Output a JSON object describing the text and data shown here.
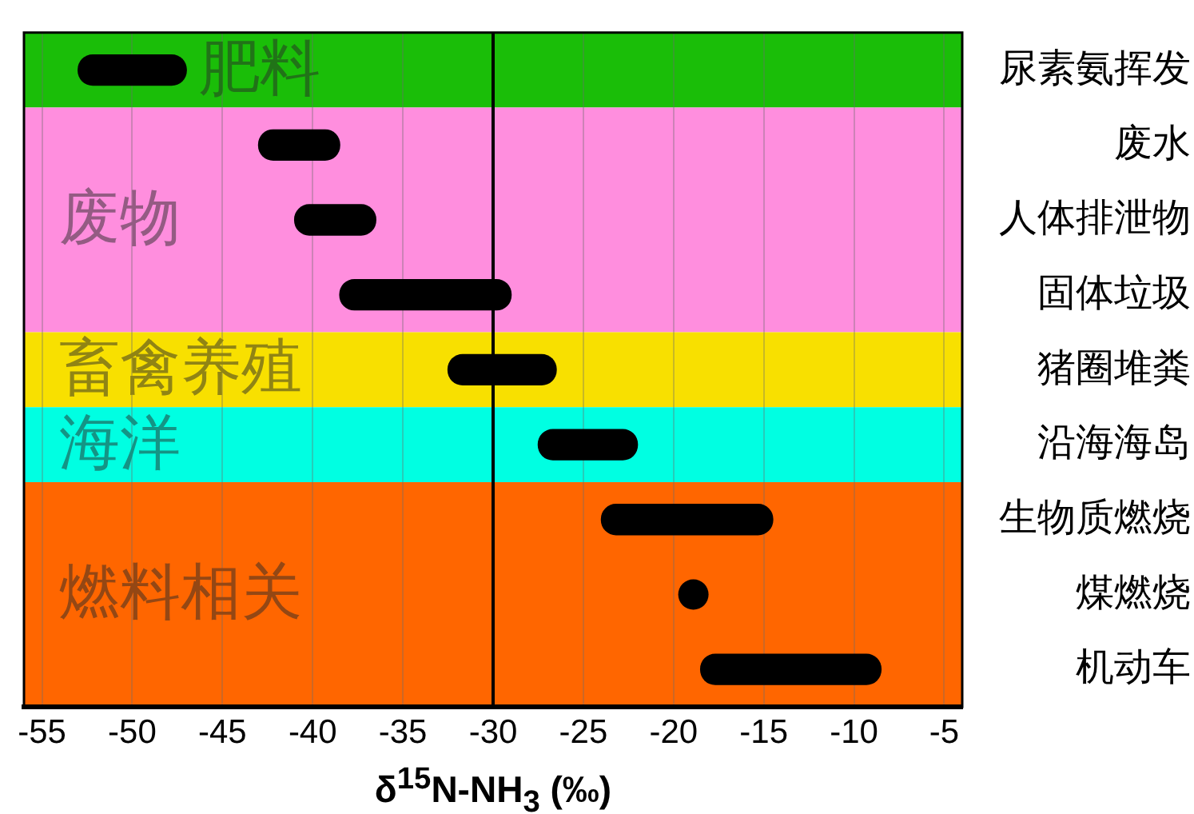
{
  "chart_data": {
    "type": "bar",
    "orientation": "horizontal",
    "categories": [
      "尿素氨挥发",
      "废水",
      "人体排泄物",
      "固体垃圾",
      "猪圈堆粪",
      "沿海海岛",
      "生物质燃烧",
      "煤燃烧",
      "机动车"
    ],
    "series": [
      {
        "type": "bar",
        "color": "#000000",
        "base": [
          -53,
          -43,
          -41,
          -38.5,
          -32.5,
          -27.5,
          -24,
          null,
          -18.5
        ],
        "values": [
          6,
          4.5,
          4.5,
          9.5,
          6,
          5.5,
          9.5,
          null,
          10
        ]
      },
      {
        "type": "scatter",
        "color": "#000000",
        "marker": "circle",
        "x": [
          "煤燃烧"
        ],
        "values": [
          -18.9
        ]
      }
    ],
    "xlim": [
      -56,
      -4
    ],
    "xticks": [
      -55,
      -50,
      -45,
      -40,
      -35,
      -30,
      -25,
      -20,
      -15,
      -10,
      -5
    ],
    "xlabel": "δ$^{15}$N-NH$_{3}$ (‰)",
    "grid": "x",
    "ref_lines": [
      {
        "axis": "x",
        "value": -30,
        "color": "#000000"
      }
    ],
    "bands": [
      {
        "axis": "y",
        "from": "尿素氨挥发",
        "to": "尿素氨挥发",
        "label": "肥料",
        "color": "#1abe08"
      },
      {
        "axis": "y",
        "from": "废水",
        "to": "固体垃圾",
        "label": "废物",
        "color": "#ff8ede"
      },
      {
        "axis": "y",
        "from": "猪圈堆粪",
        "to": "猪圈堆粪",
        "label": "畜禽养殖",
        "color": "#f8e000"
      },
      {
        "axis": "y",
        "from": "沿海海岛",
        "to": "沿海海岛",
        "label": "海洋",
        "color": "#00ffe2"
      },
      {
        "axis": "y",
        "from": "生物质燃烧",
        "to": "机动车",
        "label": "燃料相关",
        "color": "#ff6600"
      }
    ]
  }
}
